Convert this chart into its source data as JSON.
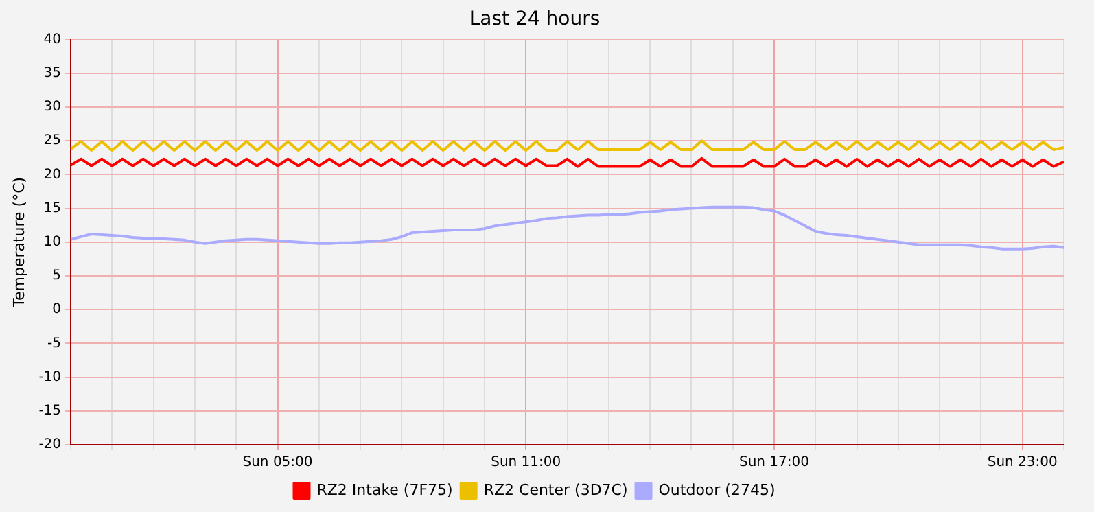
{
  "chart_data": {
    "type": "line",
    "title": "Last 24 hours",
    "ylabel": "Temperature (°C)",
    "categories": [
      null,
      null,
      null,
      null,
      null,
      null,
      null,
      null,
      null,
      null,
      null,
      null,
      null,
      null,
      null,
      null,
      null,
      null,
      null,
      null,
      "Sun 05:00",
      null,
      null,
      null,
      null,
      null,
      null,
      null,
      null,
      null,
      null,
      null,
      null,
      null,
      null,
      null,
      null,
      null,
      null,
      null,
      null,
      null,
      null,
      null,
      "Sun 11:00",
      null,
      null,
      null,
      null,
      null,
      null,
      null,
      null,
      null,
      null,
      null,
      null,
      null,
      null,
      null,
      null,
      null,
      null,
      null,
      null,
      null,
      null,
      null,
      "Sun 17:00",
      null,
      null,
      null,
      null,
      null,
      null,
      null,
      null,
      null,
      null,
      null,
      null,
      null,
      null,
      null,
      null,
      null,
      null,
      null,
      null,
      null,
      null,
      null,
      "Sun 23:00",
      null,
      null,
      null,
      null
    ],
    "series": [
      {
        "name": "RZ2 Intake (7F75)",
        "color": "#ff0000",
        "values": [
          21.4,
          22.3,
          21.3,
          22.3,
          21.3,
          22.3,
          21.3,
          22.3,
          21.3,
          22.3,
          21.3,
          22.3,
          21.3,
          22.3,
          21.3,
          22.3,
          21.3,
          22.3,
          21.3,
          22.3,
          21.3,
          22.3,
          21.3,
          22.3,
          21.3,
          22.3,
          21.3,
          22.3,
          21.3,
          22.3,
          21.3,
          22.3,
          21.3,
          22.3,
          21.3,
          22.3,
          21.3,
          22.3,
          21.3,
          22.3,
          21.3,
          22.3,
          21.3,
          22.3,
          21.3,
          22.3,
          21.3,
          21.3,
          22.3,
          21.2,
          22.3,
          21.2,
          21.2,
          21.2,
          21.2,
          21.2,
          22.2,
          21.2,
          22.2,
          21.2,
          21.2,
          22.4,
          21.2,
          21.2,
          21.2,
          21.2,
          22.2,
          21.2,
          21.2,
          22.3,
          21.2,
          21.2,
          22.2,
          21.2,
          22.2,
          21.2,
          22.3,
          21.2,
          22.2,
          21.2,
          22.2,
          21.2,
          22.3,
          21.2,
          22.2,
          21.2,
          22.2,
          21.2,
          22.3,
          21.2,
          22.2,
          21.2,
          22.2,
          21.2,
          22.2,
          21.2,
          21.9
        ]
      },
      {
        "name": "RZ2 Center (3D7C)",
        "color": "#ecc000",
        "values": [
          23.8,
          24.9,
          23.6,
          24.9,
          23.6,
          24.9,
          23.6,
          24.9,
          23.6,
          24.9,
          23.6,
          24.9,
          23.6,
          24.9,
          23.6,
          24.9,
          23.6,
          24.9,
          23.6,
          24.9,
          23.6,
          24.9,
          23.6,
          24.9,
          23.6,
          24.9,
          23.6,
          24.9,
          23.6,
          24.9,
          23.6,
          24.9,
          23.6,
          24.9,
          23.6,
          24.9,
          23.6,
          24.9,
          23.6,
          24.9,
          23.6,
          24.9,
          23.6,
          24.9,
          23.6,
          24.9,
          23.6,
          23.6,
          24.9,
          23.7,
          24.9,
          23.7,
          23.7,
          23.7,
          23.7,
          23.7,
          24.8,
          23.7,
          24.8,
          23.7,
          23.7,
          25.0,
          23.7,
          23.7,
          23.7,
          23.7,
          24.8,
          23.7,
          23.7,
          24.9,
          23.7,
          23.7,
          24.8,
          23.7,
          24.8,
          23.7,
          24.9,
          23.7,
          24.8,
          23.7,
          24.8,
          23.7,
          24.9,
          23.7,
          24.8,
          23.7,
          24.8,
          23.7,
          24.9,
          23.7,
          24.8,
          23.7,
          24.8,
          23.7,
          24.8,
          23.7,
          24.0
        ]
      },
      {
        "name": "Outdoor (2745)",
        "color": "#aaaaff",
        "values": [
          10.4,
          10.8,
          11.2,
          11.1,
          11.0,
          10.9,
          10.7,
          10.6,
          10.5,
          10.5,
          10.4,
          10.3,
          10.0,
          9.8,
          10.0,
          10.2,
          10.3,
          10.4,
          10.4,
          10.3,
          10.2,
          10.1,
          10.0,
          9.9,
          9.8,
          9.8,
          9.9,
          9.9,
          10.0,
          10.1,
          10.2,
          10.4,
          10.8,
          11.4,
          11.5,
          11.6,
          11.7,
          11.8,
          11.8,
          11.8,
          12.0,
          12.4,
          12.6,
          12.8,
          13.0,
          13.2,
          13.5,
          13.6,
          13.8,
          13.9,
          14.0,
          14.0,
          14.1,
          14.1,
          14.2,
          14.4,
          14.5,
          14.6,
          14.8,
          14.9,
          15.0,
          15.1,
          15.2,
          15.2,
          15.2,
          15.2,
          15.1,
          14.8,
          14.6,
          14.0,
          13.2,
          12.4,
          11.6,
          11.3,
          11.1,
          11.0,
          10.8,
          10.6,
          10.4,
          10.2,
          10.0,
          9.8,
          9.6,
          9.6,
          9.6,
          9.6,
          9.6,
          9.5,
          9.3,
          9.2,
          9.0,
          9.0,
          9.0,
          9.1,
          9.3,
          9.4,
          9.2
        ]
      }
    ],
    "ylim": [
      -20,
      40
    ],
    "yticks": [
      -20,
      -15,
      -10,
      -5,
      0,
      5,
      10,
      15,
      20,
      25,
      30,
      35,
      40
    ],
    "grid": true,
    "legend": "bottom",
    "marker": "none",
    "line_style": "solid"
  }
}
